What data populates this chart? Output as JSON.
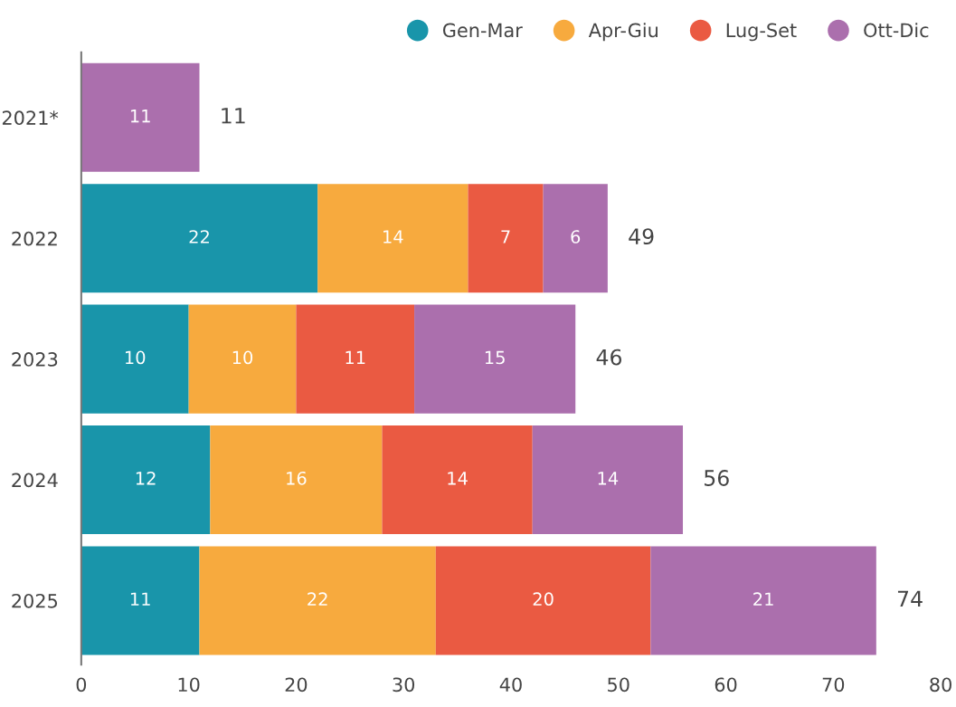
{
  "chart_data": {
    "type": "bar",
    "orientation": "horizontal",
    "stacked": true,
    "categories": [
      "2021*",
      "2022",
      "2023",
      "2024",
      "2025"
    ],
    "series": [
      {
        "name": "Gen-Mar",
        "color": "#1995aa",
        "values": [
          null,
          22,
          10,
          12,
          11
        ]
      },
      {
        "name": "Apr-Giu",
        "color": "#f7aa3e",
        "values": [
          null,
          14,
          10,
          16,
          22
        ]
      },
      {
        "name": "Lug-Set",
        "color": "#ea5a42",
        "values": [
          null,
          7,
          11,
          14,
          20
        ]
      },
      {
        "name": "Ott-Dic",
        "color": "#ab6fad",
        "values": [
          11,
          6,
          15,
          14,
          21
        ]
      }
    ],
    "xlim": [
      0,
      80
    ],
    "xticks": [
      0,
      10,
      20,
      30,
      40,
      50,
      60,
      70,
      80
    ],
    "data_labels": true,
    "totals": [
      "11",
      "49",
      "46",
      "56",
      "74"
    ],
    "legend": "top right"
  }
}
